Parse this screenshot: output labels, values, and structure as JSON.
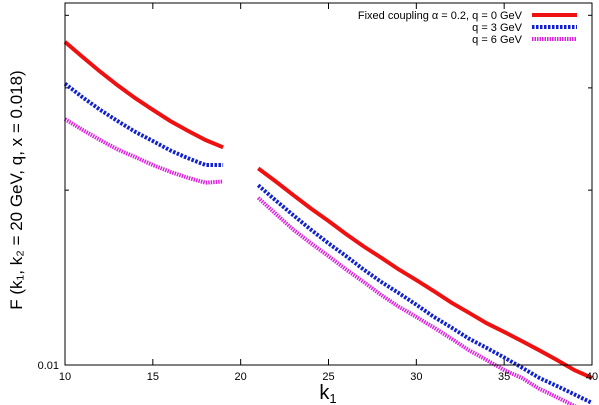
{
  "chart_data": {
    "type": "line",
    "xlabel_main": "k",
    "xlabel_sub": "1",
    "ylabel": "F (k₁, k₂ = 20 GeV, q, x = 0.018)",
    "xlim": [
      10,
      40
    ],
    "ylim": [
      0.01,
      0.042
    ],
    "yscale": "log",
    "x_ticks": [
      10,
      15,
      20,
      25,
      30,
      35,
      40
    ],
    "x_tick_labels": [
      "10",
      "15",
      "20",
      "25",
      "30",
      "35",
      "40"
    ],
    "y_tick_labels": [
      "0.01"
    ],
    "legend_position": "top-right",
    "series": [
      {
        "name": "Fixed coupling α = 0.2, q = 0 GeV",
        "color": "#ee1111",
        "style": "solid",
        "segments": [
          {
            "x": [
              10,
              11,
              12,
              13,
              14,
              15,
              16,
              17,
              18,
              19
            ],
            "y": [
              0.036,
              0.0339,
              0.032,
              0.0303,
              0.0288,
              0.0275,
              0.0263,
              0.0253,
              0.0244,
              0.0237
            ]
          },
          {
            "x": [
              21,
              22,
              23,
              24,
              25,
              26,
              27,
              28,
              29,
              30,
              31,
              32,
              33,
              34,
              35,
              36,
              37,
              38,
              39,
              40
            ],
            "y": [
              0.0218,
              0.0207,
              0.0196,
              0.0186,
              0.0177,
              0.0168,
              0.016,
              0.0153,
              0.0146,
              0.014,
              0.0134,
              0.0128,
              0.0123,
              0.0118,
              0.0114,
              0.011,
              0.0106,
              0.0102,
              0.0098,
              0.0095
            ]
          }
        ]
      },
      {
        "name": "q = 3 GeV",
        "color": "#1122cc",
        "style": "dotted",
        "segments": [
          {
            "x": [
              10,
              11,
              12,
              13,
              14,
              15,
              16,
              17,
              18,
              19
            ],
            "y": [
              0.0305,
              0.0289,
              0.0275,
              0.0263,
              0.0252,
              0.0243,
              0.0234,
              0.0227,
              0.0221,
              0.0221
            ]
          },
          {
            "x": [
              21,
              22,
              23,
              24,
              25,
              26,
              27,
              28,
              29,
              30,
              31,
              32,
              33,
              34,
              35,
              36,
              37,
              38,
              39,
              40
            ],
            "y": [
              0.0204,
              0.0192,
              0.0181,
              0.0171,
              0.0162,
              0.0154,
              0.0146,
              0.0139,
              0.0133,
              0.0127,
              0.0121,
              0.0116,
              0.0111,
              0.0107,
              0.0103,
              0.0099,
              0.0095,
              0.0092,
              0.0089,
              0.0086
            ]
          }
        ]
      },
      {
        "name": "q = 6 GeV",
        "color": "#dd22dd",
        "style": "dotted",
        "segments": [
          {
            "x": [
              10,
              11,
              12,
              13,
              14,
              15,
              16,
              17,
              18,
              19
            ],
            "y": [
              0.0265,
              0.0254,
              0.0244,
              0.0235,
              0.0228,
              0.0221,
              0.0215,
              0.021,
              0.0206,
              0.0207
            ]
          },
          {
            "x": [
              21,
              22,
              23,
              24,
              25,
              26,
              27,
              28,
              29,
              30,
              31,
              32,
              33,
              34,
              35,
              36,
              37,
              38,
              39,
              40
            ],
            "y": [
              0.0194,
              0.0182,
              0.0171,
              0.0162,
              0.0154,
              0.0146,
              0.0139,
              0.0132,
              0.0126,
              0.0121,
              0.0116,
              0.0111,
              0.0106,
              0.0102,
              0.0098,
              0.0095,
              0.0091,
              0.0088,
              0.0085,
              0.0083
            ]
          }
        ]
      }
    ]
  }
}
